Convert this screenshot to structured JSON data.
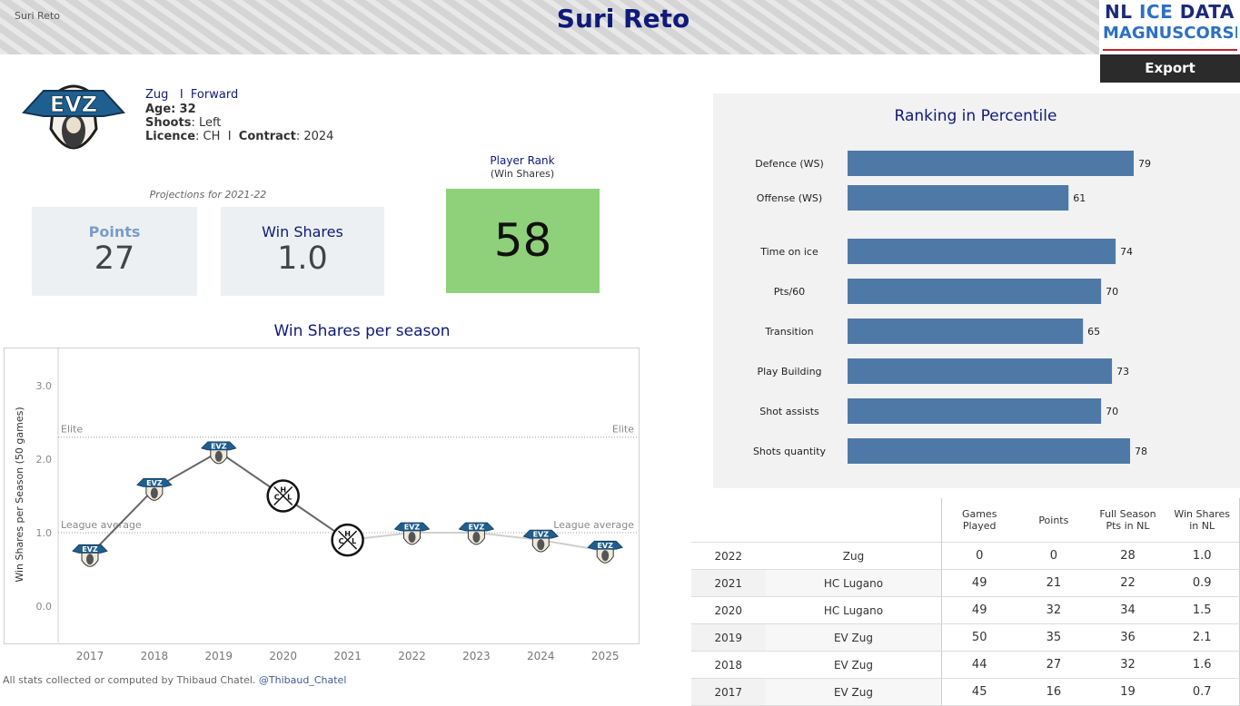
{
  "header": {
    "small_title": "Suri Reto",
    "title": "Suri Reto",
    "logo_line1_a": "NL ",
    "logo_line1_b": "ICE",
    "logo_line1_c": " DATA",
    "logo_line2": "MAGNUSCORSI",
    "export_label": "Export"
  },
  "player": {
    "team": "Zug",
    "separator": "I",
    "position": "Forward",
    "age_label": "Age:",
    "age": "32",
    "shoots_label": "Shoots",
    "shoots": ": Left",
    "licence_label": "Licence",
    "licence": ": CH",
    "licence_sep": "I",
    "contract_label": "Contract",
    "contract": ": 2024"
  },
  "projections": {
    "caption": "Projections for 2021-22",
    "points_label": "Points",
    "points_value": "27",
    "ws_label": "Win Shares",
    "ws_value": "1.0"
  },
  "rank": {
    "caption": "Player Rank",
    "sub": "(Win Shares)",
    "value": "58"
  },
  "colors": {
    "navy": "#0f1a7a",
    "bar": "#4e79a7",
    "rank_green": "#8fd17a",
    "evz_blue": "#1e5f8f"
  },
  "chart_data": [
    {
      "type": "line",
      "title": "Win Shares per season",
      "ylabel": "Win Shares per Season (50 games)",
      "xlabel": "",
      "x": [
        2017,
        2018,
        2019,
        2020,
        2021,
        2022,
        2023,
        2024,
        2025
      ],
      "xticks": [
        "2017",
        "2018",
        "2019",
        "2020",
        "2021",
        "2022",
        "2023",
        "2024",
        "2025"
      ],
      "yticks": [
        "0.0",
        "1.0",
        "2.0",
        "3.0"
      ],
      "ylim": [
        -0.5,
        3.5
      ],
      "series": [
        {
          "values": [
            0.7,
            1.6,
            2.1,
            1.5,
            0.9,
            1.0,
            1.0,
            0.9,
            0.75
          ],
          "teams": [
            "EVZ",
            "EVZ",
            "EVZ",
            "HCL",
            "HCL",
            "EVZ",
            "EVZ",
            "EVZ",
            "EVZ"
          ]
        }
      ],
      "reference_lines": [
        {
          "label_left": "Elite",
          "label_right": "Elite",
          "value": 2.3
        },
        {
          "label_left": "League average",
          "label_right": "League average",
          "value": 1.0
        }
      ],
      "grid": false
    },
    {
      "type": "bar",
      "title": "Ranking in Percentile",
      "categories": [
        "Defence (WS)",
        "Offense (WS)",
        "Time on ice",
        "Pts/60",
        "Transition",
        "Play Building",
        "Shot assists",
        "Shots quantity"
      ],
      "values": [
        79,
        61,
        74,
        70,
        65,
        73,
        70,
        78
      ],
      "xlim": [
        0,
        100
      ],
      "orientation": "horizontal"
    }
  ],
  "career": {
    "headers": [
      "",
      "",
      "Games\nPlayed",
      "Points",
      "Full Season\nPts in NL",
      "Win Shares\nin NL"
    ],
    "rows": [
      [
        "2022",
        "Zug",
        "0",
        "0",
        "28",
        "1.0"
      ],
      [
        "2021",
        "HC Lugano",
        "49",
        "21",
        "22",
        "0.9"
      ],
      [
        "2020",
        "HC Lugano",
        "49",
        "32",
        "34",
        "1.5"
      ],
      [
        "2019",
        "EV Zug",
        "50",
        "35",
        "36",
        "2.1"
      ],
      [
        "2018",
        "EV Zug",
        "44",
        "27",
        "32",
        "1.6"
      ],
      [
        "2017",
        "EV Zug",
        "45",
        "16",
        "19",
        "0.7"
      ]
    ]
  },
  "footer": {
    "text": "All stats collected or computed by Thibaud Chatel.",
    "handle": "@Thibaud_Chatel"
  }
}
